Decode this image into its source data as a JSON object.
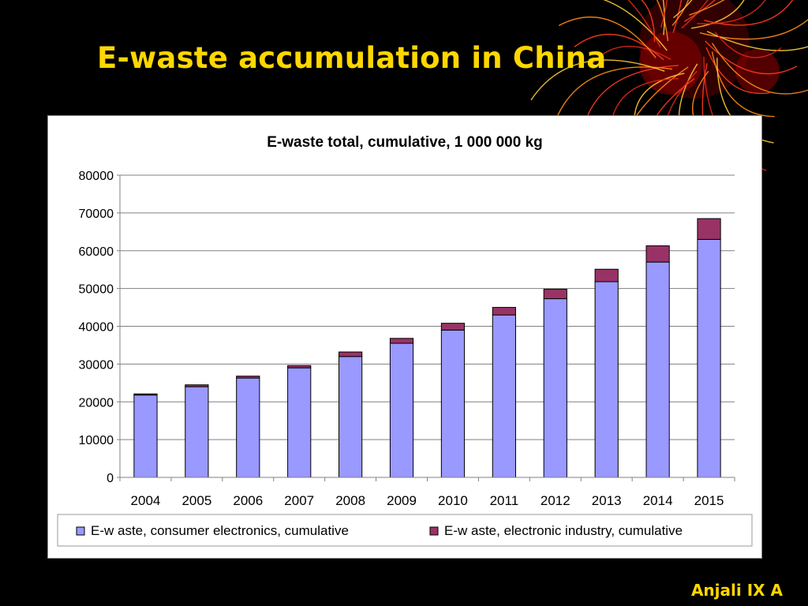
{
  "slide": {
    "title": "E-waste accumulation in China",
    "footer": "Anjali IX A"
  },
  "colors": {
    "background": "#000000",
    "title": "#ffd700",
    "consumer": "#9999ff",
    "industry": "#993366"
  },
  "chart_data": {
    "type": "bar",
    "stacked": true,
    "title": "E-waste total, cumulative, 1 000 000 kg",
    "xlabel": "",
    "ylabel": "",
    "ylim": [
      0,
      80000
    ],
    "yticks": [
      0,
      10000,
      20000,
      30000,
      40000,
      50000,
      60000,
      70000,
      80000
    ],
    "grid": true,
    "legend": "bottom",
    "categories": [
      "2004",
      "2005",
      "2006",
      "2007",
      "2008",
      "2009",
      "2010",
      "2011",
      "2012",
      "2013",
      "2014",
      "2015"
    ],
    "series": [
      {
        "name": "E-w aste, consumer electronics, cumulative",
        "color": "#9999ff",
        "values": [
          21800,
          24000,
          26300,
          29000,
          32000,
          35500,
          39000,
          43000,
          47300,
          51800,
          57000,
          63000
        ]
      },
      {
        "name": "E-w aste, electronic industry, cumulative",
        "color": "#993366",
        "values": [
          300,
          500,
          500,
          600,
          1200,
          1300,
          1800,
          2000,
          2500,
          3300,
          4300,
          5500
        ]
      }
    ]
  }
}
